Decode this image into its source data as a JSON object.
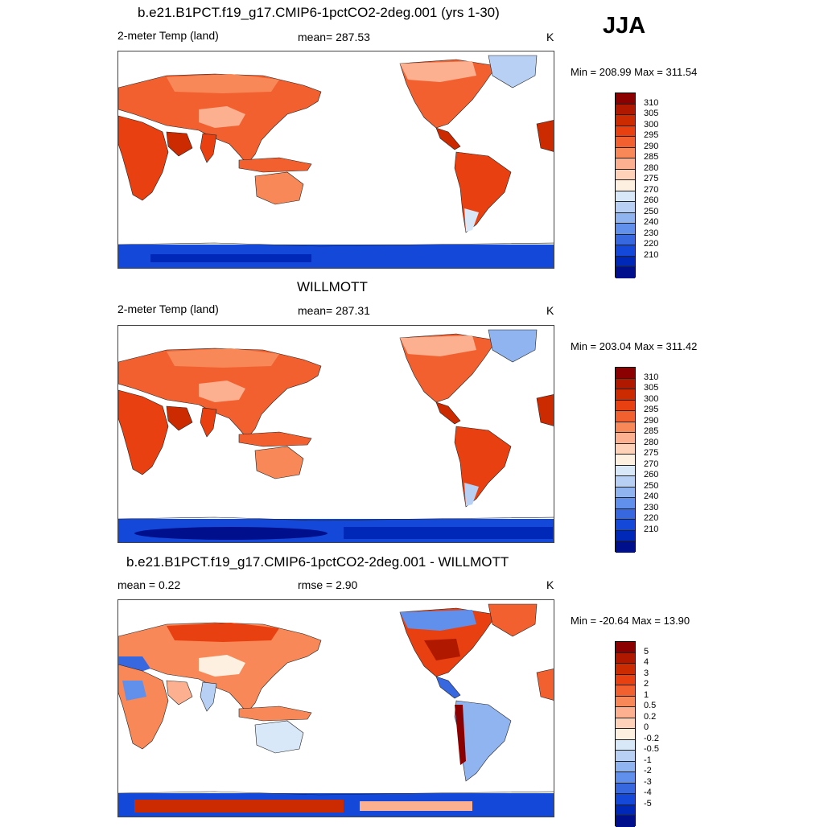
{
  "season": "JJA",
  "panels": [
    {
      "title": "b.e21.B1PCT.f19_g17.CMIP6-1pctCO2-2deg.001 (yrs 1-30)",
      "left_label": "2-meter Temp (land)",
      "center_label": "mean= 287.53",
      "units": "K",
      "minmax": "Min = 208.99 Max = 311.54",
      "type": "abs"
    },
    {
      "title": "WILLMOTT",
      "left_label": "2-meter Temp (land)",
      "center_label": "mean= 287.31",
      "units": "K",
      "minmax": "Min = 203.04 Max = 311.42",
      "type": "abs"
    },
    {
      "title": "b.e21.B1PCT.f19_g17.CMIP6-1pctCO2-2deg.001 - WILLMOTT",
      "left_label": "mean =   0.22",
      "center_label": "rmse =   2.90",
      "units": "K",
      "minmax": "Min = -20.64 Max =  13.90",
      "type": "diff"
    }
  ],
  "colorbar_abs": {
    "labels": [
      "310",
      "305",
      "300",
      "295",
      "290",
      "285",
      "280",
      "275",
      "270",
      "260",
      "250",
      "240",
      "230",
      "220",
      "210"
    ],
    "colors": [
      "#8b0000",
      "#b01800",
      "#cc2a00",
      "#e84010",
      "#f26030",
      "#f88858",
      "#fcb090",
      "#fed2b8",
      "#fdf0e0",
      "#d8e8f8",
      "#b8d0f4",
      "#90b4f0",
      "#6090ec",
      "#3868e0",
      "#1448d8",
      "#0028b8",
      "#00108c"
    ]
  },
  "colorbar_diff": {
    "labels": [
      "5",
      "4",
      "3",
      "2",
      "1",
      "0.5",
      "0.2",
      "0",
      "-0.2",
      "-0.5",
      "-1",
      "-2",
      "-3",
      "-4",
      "-5"
    ],
    "colors": [
      "#8b0000",
      "#b01800",
      "#cc2a00",
      "#e84010",
      "#f26030",
      "#f88858",
      "#fcb090",
      "#fed2b8",
      "#fdf0e0",
      "#d8e8f8",
      "#b8d0f4",
      "#90b4f0",
      "#6090ec",
      "#3868e0",
      "#1448d8",
      "#0028b8",
      "#00108c"
    ]
  }
}
